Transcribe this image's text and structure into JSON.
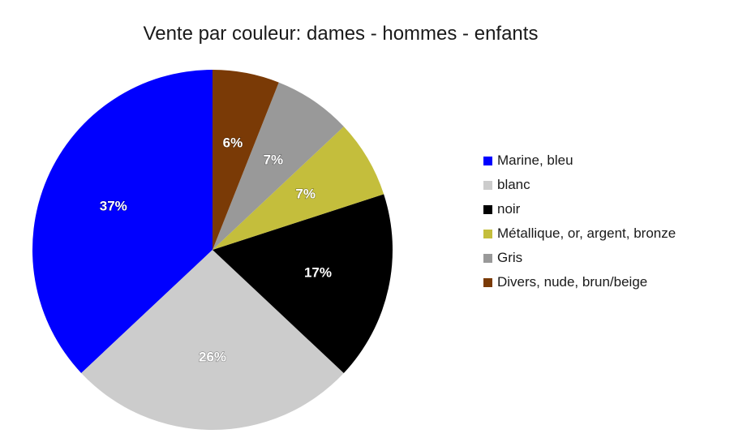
{
  "chart_data": {
    "type": "pie",
    "title": "Vente par couleur: dames - hommes - enfants",
    "legend_position": "right",
    "slices": [
      {
        "label": "Marine, bleu",
        "value": 37,
        "value_label": "37%",
        "color": "#0000ff"
      },
      {
        "label": "blanc",
        "value": 26,
        "value_label": "26%",
        "color": "#cccccc"
      },
      {
        "label": "noir",
        "value": 17,
        "value_label": "17%",
        "color": "#000000"
      },
      {
        "label": "Métallique, or, argent, bronze",
        "value": 7,
        "value_label": "7%",
        "color": "#c4be3c"
      },
      {
        "label": "Gris",
        "value": 7,
        "value_label": "7%",
        "color": "#999999"
      },
      {
        "label": "Divers, nude, brun/beige",
        "value": 6,
        "value_label": "6%",
        "color": "#7a3a06"
      }
    ]
  }
}
